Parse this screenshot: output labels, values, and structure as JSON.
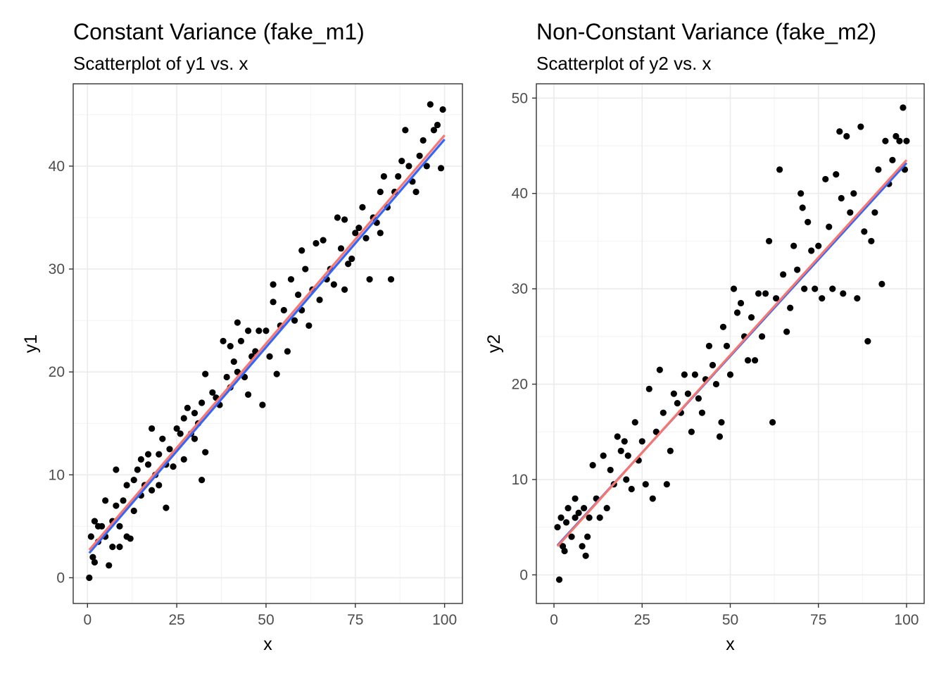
{
  "chart_data": [
    {
      "type": "scatter",
      "title": "Constant Variance (fake_m1)",
      "subtitle": "Scatterplot of y1 vs. x",
      "xlabel": "x",
      "ylabel": "y1",
      "xlim": [
        -4,
        105
      ],
      "ylim": [
        -2.5,
        48
      ],
      "x_ticks": [
        0,
        25,
        50,
        75,
        100
      ],
      "y_ticks": [
        0,
        10,
        20,
        30,
        40
      ],
      "grid": true,
      "fit_lines": [
        {
          "color": "#3366ff",
          "x": [
            0.5,
            100
          ],
          "y": [
            2.4,
            42.6
          ]
        },
        {
          "color": "#f8766d",
          "x": [
            0.5,
            100
          ],
          "y": [
            2.7,
            43.0
          ]
        }
      ],
      "point_color": "#000000",
      "points": [
        [
          0.5,
          0.0
        ],
        [
          1.0,
          4.0
        ],
        [
          1.5,
          2.0
        ],
        [
          2.0,
          5.5
        ],
        [
          2.0,
          1.5
        ],
        [
          3.0,
          5.0
        ],
        [
          3.0,
          3.5
        ],
        [
          4.0,
          5.0
        ],
        [
          5.0,
          7.5
        ],
        [
          5.0,
          4.0
        ],
        [
          6.0,
          1.2
        ],
        [
          7.0,
          3.0
        ],
        [
          7.0,
          5.5
        ],
        [
          8.0,
          10.5
        ],
        [
          8.0,
          7.0
        ],
        [
          9.0,
          3.0
        ],
        [
          9.0,
          5.0
        ],
        [
          10.0,
          7.5
        ],
        [
          11.0,
          4.0
        ],
        [
          11.0,
          9.0
        ],
        [
          12.0,
          3.8
        ],
        [
          13.0,
          6.5
        ],
        [
          13.0,
          9.5
        ],
        [
          14.0,
          10.5
        ],
        [
          15.0,
          8.0
        ],
        [
          15.0,
          11.5
        ],
        [
          16.0,
          9.0
        ],
        [
          17.0,
          12.0
        ],
        [
          17.0,
          11.0
        ],
        [
          18.0,
          14.5
        ],
        [
          18.0,
          8.5
        ],
        [
          19.0,
          10.0
        ],
        [
          20.0,
          12.0
        ],
        [
          20.0,
          9.0
        ],
        [
          21.0,
          13.5
        ],
        [
          22.0,
          6.8
        ],
        [
          22.0,
          11.0
        ],
        [
          23.0,
          12.5
        ],
        [
          24.0,
          10.8
        ],
        [
          25.0,
          14.5
        ],
        [
          26.0,
          14.0
        ],
        [
          27.0,
          15.5
        ],
        [
          27.0,
          11.5
        ],
        [
          28.0,
          16.5
        ],
        [
          29.0,
          14.0
        ],
        [
          30.0,
          16.0
        ],
        [
          30.0,
          13.5
        ],
        [
          31.0,
          15.0
        ],
        [
          32.0,
          17.0
        ],
        [
          32.0,
          9.5
        ],
        [
          33.0,
          12.2
        ],
        [
          33.0,
          19.8
        ],
        [
          35.0,
          18.0
        ],
        [
          36.0,
          17.5
        ],
        [
          37.0,
          16.8
        ],
        [
          38.0,
          23.0
        ],
        [
          39.0,
          19.5
        ],
        [
          40.0,
          22.5
        ],
        [
          40.0,
          18.5
        ],
        [
          41.0,
          21.0
        ],
        [
          42.0,
          24.8
        ],
        [
          42.0,
          20.0
        ],
        [
          43.0,
          23.0
        ],
        [
          44.0,
          19.5
        ],
        [
          45.0,
          24.0
        ],
        [
          45.0,
          17.8
        ],
        [
          46.0,
          21.5
        ],
        [
          47.0,
          22.0
        ],
        [
          48.0,
          24.0
        ],
        [
          49.0,
          16.8
        ],
        [
          50.0,
          24.0
        ],
        [
          51.0,
          21.5
        ],
        [
          52.0,
          26.8
        ],
        [
          52.0,
          28.5
        ],
        [
          53.0,
          19.8
        ],
        [
          54.0,
          24.5
        ],
        [
          55.0,
          26.0
        ],
        [
          56.0,
          22.0
        ],
        [
          57.0,
          29.0
        ],
        [
          58.0,
          25.0
        ],
        [
          59.0,
          27.5
        ],
        [
          60.0,
          26.0
        ],
        [
          60.0,
          31.8
        ],
        [
          61.0,
          30.0
        ],
        [
          62.0,
          24.5
        ],
        [
          63.0,
          28.0
        ],
        [
          64.0,
          32.5
        ],
        [
          65.0,
          27.0
        ],
        [
          66.0,
          32.8
        ],
        [
          67.0,
          29.0
        ],
        [
          68.0,
          30.0
        ],
        [
          69.0,
          28.5
        ],
        [
          70.0,
          35.0
        ],
        [
          71.0,
          32.0
        ],
        [
          72.0,
          34.8
        ],
        [
          72.0,
          28.0
        ],
        [
          73.0,
          30.5
        ],
        [
          74.0,
          31.0
        ],
        [
          75.0,
          33.5
        ],
        [
          76.0,
          34.0
        ],
        [
          77.0,
          36.0
        ],
        [
          78.0,
          33.0
        ],
        [
          79.0,
          29.0
        ],
        [
          80.0,
          35.0
        ],
        [
          81.0,
          34.5
        ],
        [
          82.0,
          37.5
        ],
        [
          82.0,
          33.5
        ],
        [
          83.0,
          39.0
        ],
        [
          84.0,
          36.0
        ],
        [
          85.0,
          29.0
        ],
        [
          86.0,
          37.5
        ],
        [
          87.0,
          39.0
        ],
        [
          88.0,
          40.5
        ],
        [
          89.0,
          43.5
        ],
        [
          90.0,
          40.0
        ],
        [
          91.0,
          38.5
        ],
        [
          92.0,
          37.5
        ],
        [
          93.0,
          41.0
        ],
        [
          94.0,
          42.5
        ],
        [
          95.0,
          40.0
        ],
        [
          96.0,
          46.0
        ],
        [
          97.0,
          43.5
        ],
        [
          98.0,
          44.0
        ],
        [
          99.0,
          39.8
        ],
        [
          99.5,
          45.5
        ]
      ]
    },
    {
      "type": "scatter",
      "title": "Non-Constant Variance (fake_m2)",
      "subtitle": "Scatterplot of y2 vs. x",
      "xlabel": "x",
      "ylabel": "y2",
      "xlim": [
        -5,
        105
      ],
      "ylim": [
        -3,
        51.5
      ],
      "x_ticks": [
        0,
        25,
        50,
        75,
        100
      ],
      "y_ticks": [
        0,
        10,
        20,
        30,
        40,
        50
      ],
      "grid": true,
      "fit_lines": [
        {
          "color": "#3366ff",
          "x": [
            1,
            100
          ],
          "y": [
            3.1,
            43.2
          ]
        },
        {
          "color": "#f8766d",
          "x": [
            1,
            100
          ],
          "y": [
            3.0,
            43.5
          ]
        }
      ],
      "point_color": "#000000",
      "points": [
        [
          1.0,
          5.0
        ],
        [
          1.5,
          -0.5
        ],
        [
          2.0,
          6.0
        ],
        [
          2.5,
          3.0
        ],
        [
          3.0,
          2.5
        ],
        [
          3.5,
          5.5
        ],
        [
          4.0,
          7.0
        ],
        [
          5.0,
          4.0
        ],
        [
          6.0,
          8.0
        ],
        [
          6.0,
          6.0
        ],
        [
          7.0,
          6.5
        ],
        [
          8.0,
          3.0
        ],
        [
          8.5,
          7.0
        ],
        [
          9.0,
          2.0
        ],
        [
          9.5,
          4.0
        ],
        [
          10.0,
          6.0
        ],
        [
          11.0,
          11.5
        ],
        [
          12.0,
          8.0
        ],
        [
          13.0,
          6.0
        ],
        [
          14.0,
          12.5
        ],
        [
          15.0,
          7.0
        ],
        [
          16.0,
          11.0
        ],
        [
          17.0,
          9.5
        ],
        [
          18.0,
          14.5
        ],
        [
          19.0,
          13.0
        ],
        [
          20.0,
          14.0
        ],
        [
          20.5,
          10.0
        ],
        [
          21.0,
          12.5
        ],
        [
          22.0,
          9.0
        ],
        [
          23.0,
          16.0
        ],
        [
          24.0,
          12.0
        ],
        [
          25.0,
          14.0
        ],
        [
          26.0,
          9.5
        ],
        [
          27.0,
          19.5
        ],
        [
          28.0,
          8.0
        ],
        [
          29.0,
          15.0
        ],
        [
          30.0,
          21.5
        ],
        [
          31.0,
          17.0
        ],
        [
          32.0,
          9.5
        ],
        [
          33.0,
          13.0
        ],
        [
          34.0,
          19.0
        ],
        [
          35.0,
          18.0
        ],
        [
          36.0,
          17.0
        ],
        [
          37.0,
          21.0
        ],
        [
          38.0,
          19.0
        ],
        [
          39.0,
          15.0
        ],
        [
          40.0,
          21.0
        ],
        [
          41.0,
          18.5
        ],
        [
          42.0,
          17.0
        ],
        [
          43.0,
          20.5
        ],
        [
          44.0,
          24.0
        ],
        [
          45.0,
          22.0
        ],
        [
          46.0,
          20.0
        ],
        [
          47.0,
          14.5
        ],
        [
          47.5,
          16.0
        ],
        [
          48.0,
          26.0
        ],
        [
          49.0,
          24.0
        ],
        [
          50.0,
          21.0
        ],
        [
          51.0,
          30.0
        ],
        [
          52.0,
          27.5
        ],
        [
          53.0,
          28.5
        ],
        [
          54.0,
          25.0
        ],
        [
          55.0,
          22.5
        ],
        [
          56.0,
          27.0
        ],
        [
          57.0,
          22.5
        ],
        [
          58.0,
          29.5
        ],
        [
          59.0,
          25.0
        ],
        [
          60.0,
          29.5
        ],
        [
          61.0,
          35.0
        ],
        [
          62.0,
          16.0
        ],
        [
          63.0,
          29.0
        ],
        [
          64.0,
          42.5
        ],
        [
          65.0,
          31.5
        ],
        [
          66.0,
          25.5
        ],
        [
          67.0,
          28.0
        ],
        [
          68.0,
          34.5
        ],
        [
          69.0,
          32.0
        ],
        [
          70.0,
          40.0
        ],
        [
          70.5,
          38.5
        ],
        [
          71.0,
          30.0
        ],
        [
          72.0,
          37.0
        ],
        [
          73.0,
          34.0
        ],
        [
          74.0,
          30.0
        ],
        [
          75.0,
          34.5
        ],
        [
          76.0,
          29.0
        ],
        [
          77.0,
          41.5
        ],
        [
          78.0,
          36.5
        ],
        [
          79.0,
          30.0
        ],
        [
          80.0,
          42.0
        ],
        [
          81.0,
          46.5
        ],
        [
          81.5,
          39.5
        ],
        [
          82.0,
          29.5
        ],
        [
          83.0,
          46.0
        ],
        [
          84.0,
          38.0
        ],
        [
          85.0,
          40.0
        ],
        [
          86.0,
          29.0
        ],
        [
          87.0,
          47.0
        ],
        [
          88.0,
          36.0
        ],
        [
          89.0,
          24.5
        ],
        [
          90.0,
          35.0
        ],
        [
          91.0,
          38.0
        ],
        [
          92.0,
          42.5
        ],
        [
          93.0,
          30.5
        ],
        [
          94.0,
          45.5
        ],
        [
          95.0,
          41.0
        ],
        [
          96.0,
          43.5
        ],
        [
          97.0,
          46.0
        ],
        [
          98.0,
          45.5
        ],
        [
          99.0,
          49.0
        ],
        [
          99.5,
          42.5
        ],
        [
          100.0,
          45.5
        ]
      ]
    }
  ]
}
